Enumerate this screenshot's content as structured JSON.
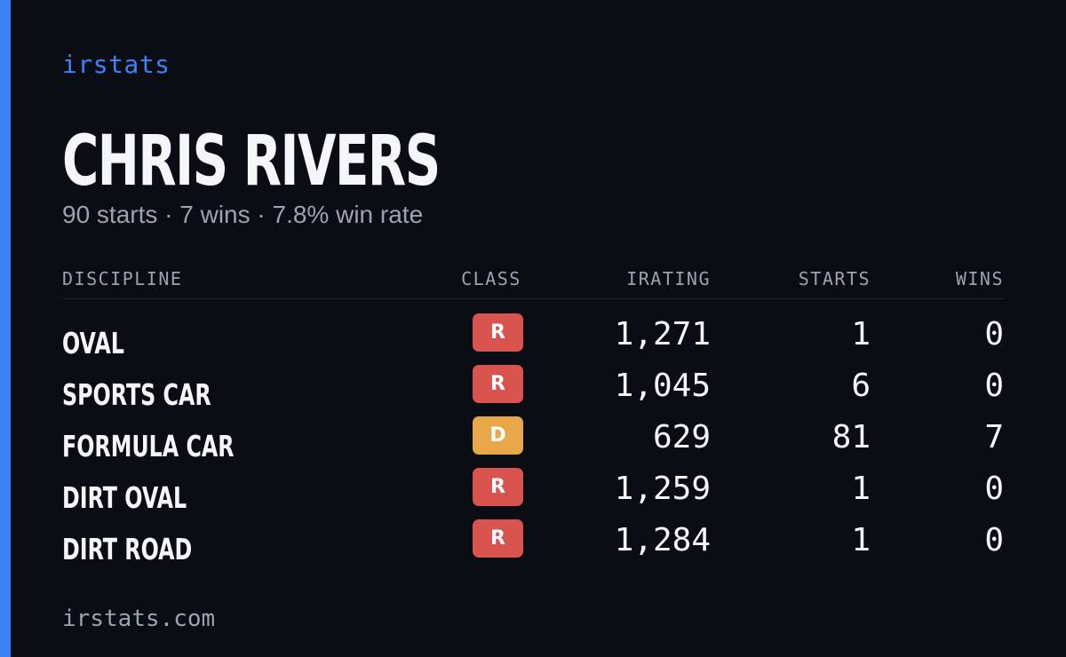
{
  "brand": {
    "name": "irstats",
    "url": "irstats.com",
    "accent_color": "#3b82f6"
  },
  "driver": {
    "name": "CHRIS RIVERS",
    "summary": "90 starts · 7 wins · 7.8% win rate"
  },
  "table": {
    "headers": {
      "discipline": "DISCIPLINE",
      "class": "CLASS",
      "irating": "IRATING",
      "starts": "STARTS",
      "wins": "WINS"
    },
    "rows": [
      {
        "discipline": "OVAL",
        "class": "R",
        "class_color": "#d9534f",
        "irating": "1,271",
        "starts": "1",
        "wins": "0"
      },
      {
        "discipline": "SPORTS CAR",
        "class": "R",
        "class_color": "#d9534f",
        "irating": "1,045",
        "starts": "6",
        "wins": "0"
      },
      {
        "discipline": "FORMULA CAR",
        "class": "D",
        "class_color": "#e8a84a",
        "irating": "629",
        "starts": "81",
        "wins": "7"
      },
      {
        "discipline": "DIRT OVAL",
        "class": "R",
        "class_color": "#d9534f",
        "irating": "1,259",
        "starts": "1",
        "wins": "0"
      },
      {
        "discipline": "DIRT ROAD",
        "class": "R",
        "class_color": "#d9534f",
        "irating": "1,284",
        "starts": "1",
        "wins": "0"
      }
    ]
  }
}
